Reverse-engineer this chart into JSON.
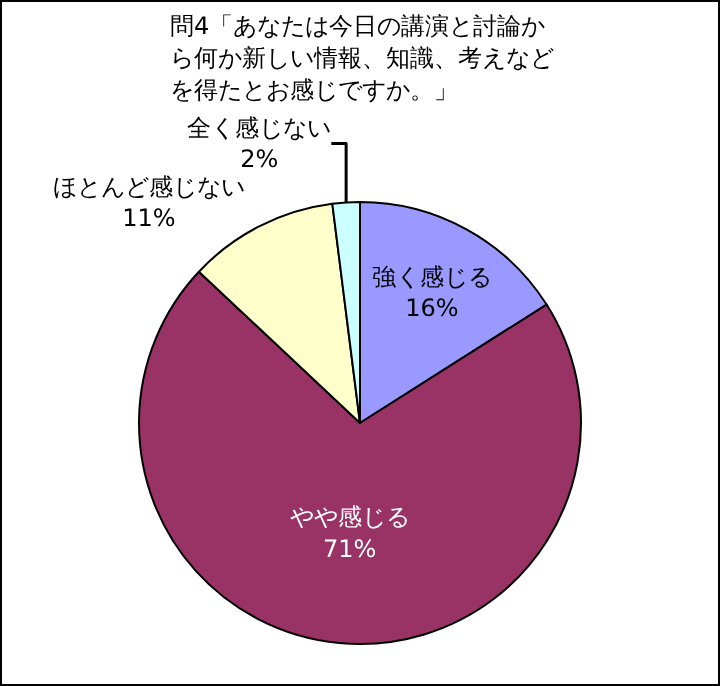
{
  "chart_data": {
    "type": "pie",
    "title": "問4「あなたは今日の講演と討論から何か新しい情報、知識、考えなどを得たとお感じですか。」",
    "categories": [
      "強く感じる",
      "やや感じる",
      "ほとんど感じない",
      "全く感じない"
    ],
    "values": [
      16,
      71,
      11,
      2
    ],
    "colors": [
      "#9999ff",
      "#993366",
      "#ffffcc",
      "#ccffff"
    ],
    "value_labels": [
      "16%",
      "71%",
      "11%",
      "2%"
    ],
    "legend": false
  }
}
